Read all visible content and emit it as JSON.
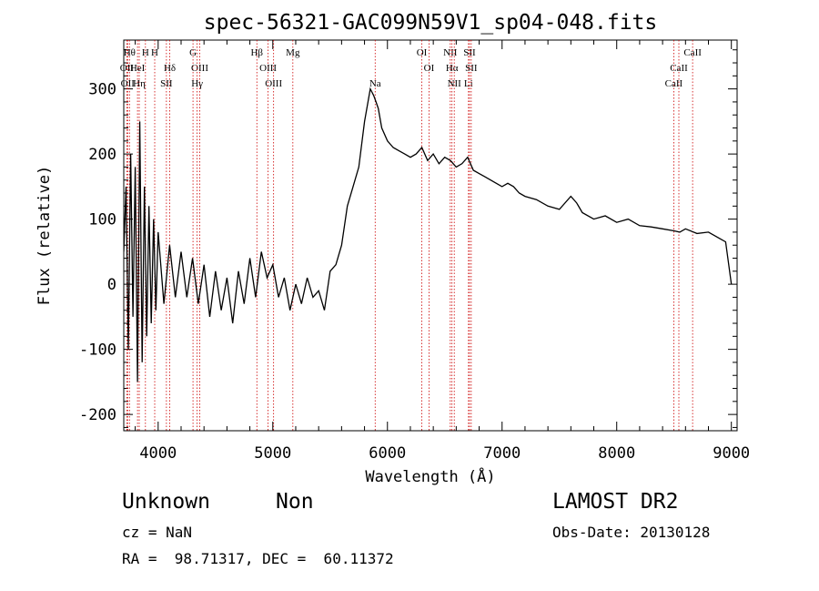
{
  "chart_data": {
    "type": "line",
    "title": "spec-56321-GAC099N59V1_sp04-048.fits",
    "xlabel": "Wavelength (Å)",
    "ylabel": "Flux (relative)",
    "xlim": [
      3700,
      9050
    ],
    "ylim": [
      -225,
      375
    ],
    "xticks": [
      4000,
      5000,
      6000,
      7000,
      8000,
      9000
    ],
    "yticks": [
      -200,
      -100,
      0,
      100,
      200,
      300
    ],
    "grid": false,
    "line_color": "#000000",
    "marker_color": "#cc0000",
    "series": [
      {
        "x": [
          3700,
          3720,
          3740,
          3760,
          3780,
          3800,
          3820,
          3840,
          3860,
          3880,
          3900,
          3920,
          3940,
          3960,
          3980,
          4000,
          4050,
          4100,
          4150,
          4200,
          4250,
          4300,
          4350,
          4400,
          4450,
          4500,
          4550,
          4600,
          4650,
          4700,
          4750,
          4800,
          4850,
          4900,
          4950,
          5000,
          5050,
          5100,
          5150,
          5200,
          5250,
          5300,
          5350,
          5400,
          5450,
          5500,
          5550,
          5600,
          5650,
          5700,
          5750,
          5800,
          5850,
          5880,
          5900,
          5920,
          5950,
          6000,
          6050,
          6100,
          6150,
          6200,
          6250,
          6300,
          6350,
          6400,
          6450,
          6500,
          6550,
          6600,
          6650,
          6700,
          6750,
          6800,
          6850,
          6900,
          6950,
          7000,
          7050,
          7100,
          7150,
          7200,
          7300,
          7400,
          7500,
          7600,
          7650,
          7700,
          7800,
          7900,
          8000,
          8100,
          8200,
          8300,
          8400,
          8500,
          8550,
          8600,
          8700,
          8800,
          8900,
          8950,
          9000
        ],
        "y": [
          50,
          150,
          -100,
          200,
          -50,
          180,
          -150,
          250,
          -120,
          150,
          -80,
          120,
          -60,
          100,
          -40,
          80,
          -30,
          60,
          -20,
          50,
          -20,
          40,
          -30,
          30,
          -50,
          20,
          -40,
          10,
          -60,
          20,
          -30,
          40,
          -20,
          50,
          10,
          30,
          -20,
          10,
          -40,
          0,
          -30,
          10,
          -20,
          -10,
          -40,
          20,
          30,
          60,
          120,
          150,
          180,
          250,
          300,
          290,
          280,
          270,
          240,
          220,
          210,
          205,
          200,
          195,
          200,
          210,
          190,
          200,
          185,
          195,
          190,
          180,
          185,
          195,
          175,
          170,
          165,
          160,
          155,
          150,
          155,
          150,
          140,
          135,
          130,
          120,
          115,
          135,
          125,
          110,
          100,
          105,
          95,
          100,
          90,
          88,
          85,
          82,
          80,
          85,
          78,
          80,
          70,
          65,
          0
        ]
      }
    ],
    "lines": [
      {
        "wl": 3750,
        "label": "Hθ",
        "row": 1
      },
      {
        "wl": 3727,
        "label": "OII",
        "row": 2
      },
      {
        "wl": 3734,
        "label": "OII",
        "row": 3
      },
      {
        "wl": 3820,
        "label": "HeI",
        "row": 2
      },
      {
        "wl": 3835,
        "label": "Hη",
        "row": 3
      },
      {
        "wl": 3889,
        "label": "H",
        "row": 1
      },
      {
        "wl": 3970,
        "label": "H",
        "row": 1
      },
      {
        "wl": 4101,
        "label": "Hδ",
        "row": 2
      },
      {
        "wl": 4072,
        "label": "SII",
        "row": 3
      },
      {
        "wl": 4304,
        "label": "G",
        "row": 1
      },
      {
        "wl": 4363,
        "label": "OIII",
        "row": 2
      },
      {
        "wl": 4340,
        "label": "Hγ",
        "row": 3
      },
      {
        "wl": 4861,
        "label": "Hβ",
        "row": 1
      },
      {
        "wl": 4959,
        "label": "OIII",
        "row": 2
      },
      {
        "wl": 5007,
        "label": "OIII",
        "row": 3
      },
      {
        "wl": 5175,
        "label": "Mg",
        "row": 1
      },
      {
        "wl": 5893,
        "label": "Na",
        "row": 3
      },
      {
        "wl": 6300,
        "label": "OI",
        "row": 1
      },
      {
        "wl": 6363,
        "label": "OI",
        "row": 2
      },
      {
        "wl": 6548,
        "label": "NII",
        "row": 1
      },
      {
        "wl": 6563,
        "label": "Hα",
        "row": 2
      },
      {
        "wl": 6583,
        "label": "NII",
        "row": 3
      },
      {
        "wl": 6707,
        "label": "Li",
        "row": 3
      },
      {
        "wl": 6716,
        "label": "SII",
        "row": 1
      },
      {
        "wl": 6731,
        "label": "SII",
        "row": 2
      },
      {
        "wl": 8498,
        "label": "CaII",
        "row": 3
      },
      {
        "wl": 8542,
        "label": "CaII",
        "row": 2
      },
      {
        "wl": 8662,
        "label": "CaII",
        "row": 1
      }
    ]
  },
  "footer": {
    "class": "Unknown",
    "subclass": "Non",
    "survey": "LAMOST DR2",
    "cz": "cz = NaN",
    "obs_date": "Obs-Date: 20130128",
    "radec": "RA =  98.71317, DEC =  60.11372"
  }
}
